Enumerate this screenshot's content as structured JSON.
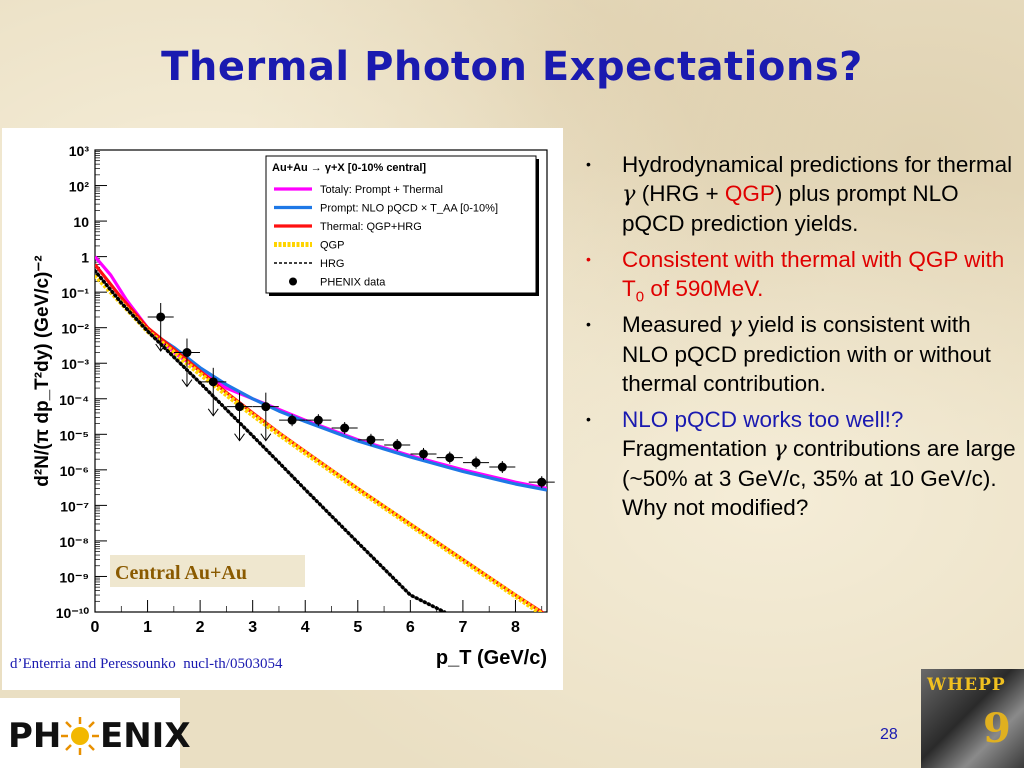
{
  "slide": {
    "title": "Thermal Photon Expectations?",
    "citation": "d’Enterria and Peressounko  nucl-th/0503054",
    "page_number": "28"
  },
  "bullets": [
    {
      "color": "black",
      "parts": [
        {
          "text": "Hydrodynamical predictions for thermal "
        },
        {
          "text": "γ",
          "sym": true
        },
        {
          "text": " (HRG + "
        },
        {
          "text": "QGP",
          "color": "#e00000"
        },
        {
          "text": ") plus prompt NLO pQCD prediction yields."
        }
      ]
    },
    {
      "color": "red",
      "parts": [
        {
          "text": "Consistent with thermal with QGP with T"
        },
        {
          "text": "0",
          "sub": true
        },
        {
          "text": " of 590MeV."
        }
      ]
    },
    {
      "color": "black",
      "parts": [
        {
          "text": "Measured "
        },
        {
          "text": "γ",
          "sym": true
        },
        {
          "text": " yield is consistent with NLO pQCD prediction with or without thermal contribution."
        }
      ]
    },
    {
      "color": "black",
      "parts": [
        {
          "text": "NLO pQCD works too well!?",
          "color": "#1a1ab0"
        },
        {
          "text": " Fragmentation "
        },
        {
          "text": "γ",
          "sym": true
        },
        {
          "text": " contributions are large (~50% at 3 GeV/c, 35% at 10 GeV/c). Why not modified?"
        }
      ]
    }
  ],
  "logos": {
    "phenix_left": "PH",
    "phenix_right": "ENIX",
    "whepp": "WHEPP",
    "whepp_number": "9"
  },
  "chart_data": {
    "type": "line",
    "log_y": true,
    "xlim": [
      0,
      8.6
    ],
    "ylim": [
      1e-10,
      1000
    ],
    "xlabel": "p_T (GeV/c)",
    "ylabel": "d²N/(π dp_T²dy) (GeV/c)⁻²",
    "x_ticks": [
      "0",
      "1",
      "2",
      "3",
      "4",
      "5",
      "6",
      "7",
      "8"
    ],
    "y_ticks": [
      "10⁻¹⁰",
      "10⁻⁹",
      "10⁻⁸",
      "10⁻⁷",
      "10⁻⁶",
      "10⁻⁵",
      "10⁻⁴",
      "10⁻³",
      "10⁻²",
      "10⁻¹",
      "1",
      "10",
      "10²",
      "10³"
    ],
    "legend": {
      "title": "Au+Au → γ+X   [0-10% central]",
      "placement": "top-right"
    },
    "annotation": "Central Au+Au",
    "series": [
      {
        "name": "Totalγ: Prompt + Thermal",
        "style": "solid",
        "color": "#ff00ff",
        "x": [
          0,
          0.3,
          0.6,
          1.0,
          1.5,
          2.0,
          2.5,
          3.0,
          3.5,
          4.0,
          5.0,
          6.0,
          7.0,
          8.0,
          8.6
        ],
        "y": [
          1.0,
          0.3,
          0.06,
          0.01,
          0.002,
          0.0006,
          0.0002,
          0.0001,
          5e-05,
          2.5e-05,
          7e-06,
          2.5e-06,
          1e-06,
          4.5e-07,
          3e-07
        ]
      },
      {
        "name": "Prompt: NLO pQCD × T_AA [0-10%]",
        "style": "solid",
        "color": "#1e78e6",
        "x": [
          1.2,
          1.5,
          2.0,
          2.5,
          3.0,
          3.5,
          4.0,
          5.0,
          6.0,
          7.0,
          8.0,
          8.6
        ],
        "y": [
          0.0055,
          0.0028,
          0.00075,
          0.00025,
          0.0001,
          4.5e-05,
          2.3e-05,
          6.5e-06,
          2.3e-06,
          9e-07,
          4e-07,
          2.7e-07
        ]
      },
      {
        "name": "Thermal: QGP+HRG",
        "style": "solid",
        "color": "#ff1010",
        "x": [
          0,
          0.5,
          1.0,
          1.5,
          2.0,
          2.5,
          3.0,
          3.5,
          4.0,
          5.0,
          6.0,
          7.0,
          8.0,
          8.6
        ],
        "y": [
          0.6,
          0.07,
          0.01,
          0.0025,
          0.0006,
          0.00015,
          4e-05,
          1.1e-05,
          3.3e-06,
          3e-07,
          3e-08,
          3e-09,
          3e-10,
          8e-11
        ]
      },
      {
        "name": "QGP",
        "style": "dashed",
        "color": "#ffd400",
        "x": [
          0,
          0.5,
          1.0,
          1.5,
          2.0,
          2.5,
          3.0,
          3.5,
          4.0,
          5.0,
          6.0,
          7.0,
          8.0,
          8.6
        ],
        "y": [
          0.3,
          0.05,
          0.008,
          0.002,
          0.0005,
          0.00013,
          3.5e-05,
          1e-05,
          3e-06,
          2.8e-07,
          2.8e-08,
          2.8e-09,
          2.8e-10,
          7e-11
        ]
      },
      {
        "name": "HRG",
        "style": "dotted",
        "color": "#000000",
        "x": [
          0,
          0.5,
          1.0,
          1.5,
          2.0,
          2.5,
          3.0,
          3.5,
          4.0,
          5.0,
          6.0,
          6.65
        ],
        "y": [
          0.4,
          0.05,
          0.008,
          0.0015,
          0.00028,
          5e-05,
          9e-06,
          1.6e-06,
          2.8e-07,
          9e-09,
          3e-10,
          1e-10
        ]
      }
    ],
    "phenix_data": {
      "name": "PHENIX data",
      "points": [
        {
          "x": 1.25,
          "y": 0.02,
          "upper_limit": true
        },
        {
          "x": 1.75,
          "y": 0.002,
          "upper_limit": true
        },
        {
          "x": 2.25,
          "y": 0.0003,
          "upper_limit": true
        },
        {
          "x": 2.75,
          "y": 6e-05,
          "upper_limit": true
        },
        {
          "x": 3.25,
          "y": 6e-05,
          "upper_limit": true
        },
        {
          "x": 3.75,
          "y": 2.5e-05
        },
        {
          "x": 4.25,
          "y": 2.5e-05
        },
        {
          "x": 4.75,
          "y": 1.5e-05
        },
        {
          "x": 5.25,
          "y": 7e-06
        },
        {
          "x": 5.75,
          "y": 5e-06
        },
        {
          "x": 6.25,
          "y": 2.8e-06
        },
        {
          "x": 6.75,
          "y": 2.2e-06
        },
        {
          "x": 7.25,
          "y": 1.6e-06
        },
        {
          "x": 7.75,
          "y": 1.2e-06
        },
        {
          "x": 8.5,
          "y": 4.5e-07
        }
      ]
    }
  }
}
